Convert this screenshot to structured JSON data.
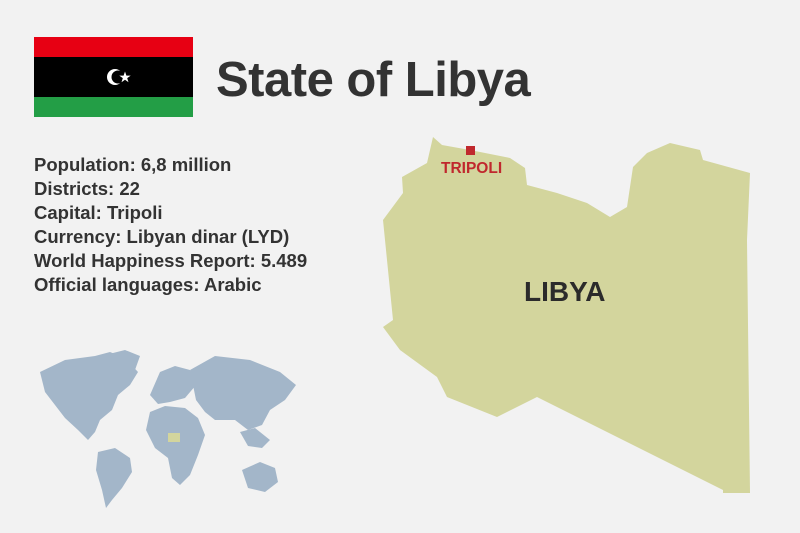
{
  "title": "State of Libya",
  "facts": [
    "Population: 6,8 million",
    "Districts: 22",
    "Capital: Tripoli",
    "Currency: Libyan dinar (LYD)",
    "World Happiness Report: 5.489",
    "Official languages: Arabic"
  ],
  "map": {
    "country_label": "LIBYA",
    "capital_label": "TRIPOLI",
    "country_color": "#d3d59d",
    "capital_color": "#c0282d",
    "world_color": "#a3b6c9"
  },
  "flag": {
    "colors": [
      "#e70013",
      "#000000",
      "#239e46"
    ],
    "emblem": "crescent-star-icon"
  }
}
